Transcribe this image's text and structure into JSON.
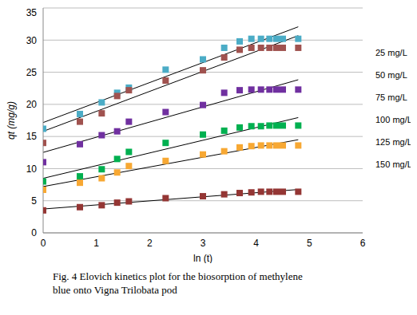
{
  "chart_data": {
    "type": "scatter",
    "title": "Fig. 4 Elovich kinetics plot for the biosorption of methylene blue onto Vigna Trilobata pod",
    "x_label": "ln (t)",
    "y_label": "qt (mg/g)",
    "x": [
      0,
      0.69,
      1.1,
      1.39,
      1.61,
      2.3,
      3.0,
      3.4,
      3.69,
      3.91,
      4.09,
      4.25,
      4.38,
      4.5,
      4.79
    ],
    "series": [
      {
        "name": "25 mg/L",
        "color": "#4bacc6",
        "marker": "square",
        "values": [
          16.2,
          18.5,
          20.3,
          21.8,
          22.6,
          25.4,
          27.0,
          28.8,
          29.8,
          30.2,
          30.2,
          30.2,
          30.2,
          30.2,
          30.2
        ]
      },
      {
        "name": "50 mg/L",
        "color": "#a0524f",
        "marker": "square",
        "values": [
          14.0,
          17.3,
          18.6,
          21.3,
          22.2,
          23.7,
          25.3,
          27.3,
          28.5,
          28.8,
          28.8,
          28.8,
          28.8,
          28.8,
          28.8
        ]
      },
      {
        "name": "75 mg/L",
        "color": "#7030a0",
        "marker": "square",
        "values": [
          11.0,
          13.8,
          15.2,
          15.8,
          17.3,
          18.8,
          19.9,
          21.8,
          22.2,
          22.3,
          22.3,
          22.3,
          22.3,
          22.3,
          22.3
        ]
      },
      {
        "name": "100 mg/L",
        "color": "#00b050",
        "marker": "square",
        "values": [
          8.0,
          8.8,
          9.9,
          11.5,
          12.6,
          14.0,
          15.3,
          15.9,
          16.4,
          16.6,
          16.6,
          16.7,
          16.7,
          16.7,
          16.7
        ]
      },
      {
        "name": "125 mg/L",
        "color": "#f7a833",
        "marker": "square",
        "values": [
          6.7,
          7.8,
          8.5,
          9.4,
          10.4,
          11.2,
          12.2,
          12.7,
          13.3,
          13.5,
          13.6,
          13.6,
          13.6,
          13.6,
          13.6
        ]
      },
      {
        "name": "150 mg/L",
        "color": "#943634",
        "marker": "square",
        "values": [
          3.5,
          4.0,
          4.3,
          4.7,
          4.9,
          5.4,
          5.7,
          6.0,
          6.2,
          6.3,
          6.4,
          6.4,
          6.4,
          6.4,
          6.4
        ]
      }
    ],
    "xlim": [
      0,
      6
    ],
    "xticks": [
      0,
      1,
      2,
      3,
      4,
      5,
      6
    ],
    "ylim": [
      0,
      35
    ],
    "yticks": [
      0,
      5,
      10,
      15,
      20,
      25,
      30,
      35
    ],
    "grid": true
  }
}
